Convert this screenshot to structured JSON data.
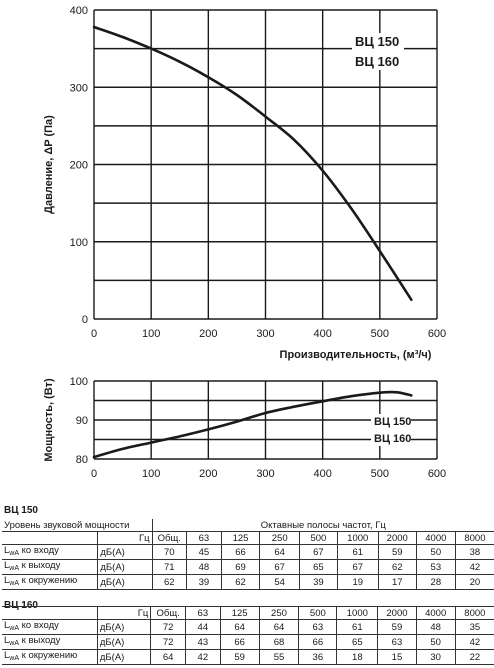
{
  "chart_data": [
    {
      "type": "line",
      "title": "",
      "xlabel": "Производительность, (м³/ч)",
      "ylabel": "Давление, ΔP (Па)",
      "xlim": [
        0,
        600
      ],
      "ylim": [
        0,
        400
      ],
      "xticks": [
        "0",
        "100",
        "200",
        "300",
        "400",
        "500",
        "600"
      ],
      "yticks": [
        "0",
        "100",
        "200",
        "300",
        "400"
      ],
      "grid": true,
      "legend": [
        "ВЦ 150",
        "ВЦ 160"
      ],
      "series": [
        {
          "name": "",
          "x": [
            0,
            50,
            100,
            150,
            200,
            250,
            300,
            350,
            400,
            450,
            500,
            555
          ],
          "y": [
            378,
            365,
            350,
            333,
            313,
            290,
            262,
            232,
            192,
            143,
            88,
            25
          ]
        }
      ]
    },
    {
      "type": "line",
      "title": "",
      "xlabel": "",
      "ylabel": "Мощность, (Вт)",
      "xlim": [
        0,
        600
      ],
      "ylim": [
        80,
        100
      ],
      "xticks": [
        "0",
        "100",
        "200",
        "300",
        "400",
        "500",
        "600"
      ],
      "yticks": [
        "80",
        "90",
        "100"
      ],
      "grid": true,
      "legend": [
        "ВЦ 150",
        "ВЦ 160"
      ],
      "series": [
        {
          "name": "",
          "x": [
            0,
            50,
            100,
            150,
            200,
            250,
            300,
            350,
            400,
            450,
            500,
            530,
            555
          ],
          "y": [
            80.5,
            82.6,
            84.2,
            85.8,
            87.6,
            89.6,
            91.8,
            93.4,
            94.8,
            96.1,
            97.0,
            97.1,
            96.3
          ]
        }
      ]
    }
  ],
  "tables": [
    {
      "title": "ВЦ 150",
      "level_label": "Уровень звуковой мощности",
      "bands_label": "Октавные полосы частот, Гц",
      "unit_col": "Гц",
      "columns": [
        "Общ.",
        "63",
        "125",
        "250",
        "500",
        "1000",
        "2000",
        "4000",
        "8000"
      ],
      "rows": [
        {
          "sym": "L",
          "sub": "wA",
          "suffix": " ко входу",
          "unit": "дБ(А)",
          "values": [
            "70",
            "45",
            "66",
            "64",
            "67",
            "61",
            "59",
            "50",
            "38"
          ]
        },
        {
          "sym": "L",
          "sub": "wA",
          "suffix": " к выходу",
          "unit": "дБ(А)",
          "values": [
            "71",
            "48",
            "69",
            "67",
            "65",
            "67",
            "62",
            "53",
            "42"
          ]
        },
        {
          "sym": "L",
          "sub": "wA",
          "suffix": " к окружению",
          "unit": "дБ(А)",
          "values": [
            "62",
            "39",
            "62",
            "54",
            "39",
            "19",
            "17",
            "28",
            "20"
          ]
        }
      ]
    },
    {
      "title": "ВЦ 160",
      "unit_col": "Гц",
      "columns": [
        "Общ.",
        "63",
        "125",
        "250",
        "500",
        "1000",
        "2000",
        "4000",
        "8000"
      ],
      "rows": [
        {
          "sym": "L",
          "sub": "wA",
          "suffix": " ко входу",
          "unit": "дБ(А)",
          "values": [
            "72",
            "44",
            "64",
            "64",
            "63",
            "61",
            "59",
            "48",
            "35"
          ]
        },
        {
          "sym": "L",
          "sub": "wA",
          "suffix": " к выходу",
          "unit": "дБ(А)",
          "values": [
            "72",
            "43",
            "66",
            "68",
            "66",
            "65",
            "63",
            "50",
            "42"
          ]
        },
        {
          "sym": "L",
          "sub": "wA",
          "suffix": " к окружению",
          "unit": "дБ(А)",
          "values": [
            "64",
            "42",
            "59",
            "55",
            "36",
            "18",
            "15",
            "30",
            "22"
          ]
        }
      ]
    }
  ],
  "colors": {
    "line": "#1a1a1a",
    "grid": "#1a1a1a"
  }
}
